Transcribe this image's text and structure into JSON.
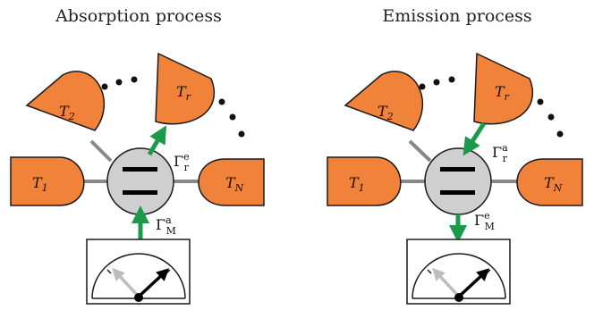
{
  "panels": [
    {
      "title": "Absorption process",
      "baths": [
        {
          "main": "T",
          "sub": "1"
        },
        {
          "main": "T",
          "sub": "2"
        },
        {
          "main": "T",
          "sub": "r"
        },
        {
          "main": "T",
          "sub": "N"
        }
      ],
      "coupling_r": {
        "symbol": "Γ",
        "sup": "e",
        "sub": "r"
      },
      "coupling_m": {
        "symbol": "Γ",
        "sup": "a",
        "sub": "M"
      }
    },
    {
      "title": "Emission process",
      "baths": [
        {
          "main": "T",
          "sub": "1"
        },
        {
          "main": "T",
          "sub": "2"
        },
        {
          "main": "T",
          "sub": "r"
        },
        {
          "main": "T",
          "sub": "N"
        }
      ],
      "coupling_r": {
        "symbol": "Γ",
        "sup": "a",
        "sub": "r"
      },
      "coupling_m": {
        "symbol": "Γ",
        "sup": "e",
        "sub": "M"
      }
    }
  ],
  "colors": {
    "bath_fill": "#f0823a",
    "bath_stroke": "#1a1a1a",
    "system_fill": "#cfcfcf",
    "arrow": "#1a9a4a",
    "needle_light": "#bdbdbd",
    "needle_dark": "#000000"
  }
}
